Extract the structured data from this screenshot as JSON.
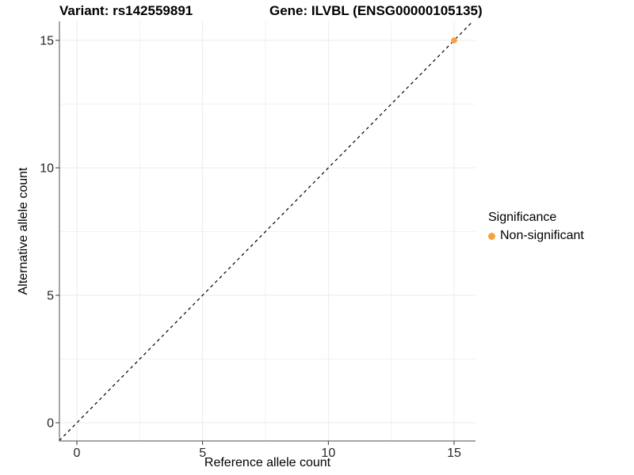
{
  "chart_data": {
    "type": "scatter",
    "title_left": "Variant: rs142559891",
    "title_right": "Gene: ILVBL (ENSG00000105135)",
    "xlabel": "Reference allele count",
    "ylabel": "Alternative allele count",
    "xlim": [
      -0.7,
      15.8
    ],
    "ylim": [
      -0.7,
      15.8
    ],
    "xticks": [
      0,
      5,
      10,
      15
    ],
    "yticks": [
      0,
      5,
      10,
      15
    ],
    "grid": {
      "major": true,
      "minor": true,
      "major_color": "#EBEBEB",
      "minor_color": "#F2F2F2"
    },
    "reference_line": {
      "type": "abline",
      "slope": 1,
      "intercept": 0,
      "style": "dashed",
      "color": "#000000"
    },
    "series": [
      {
        "name": "Non-significant",
        "color": "#F8A23E",
        "points": [
          {
            "x": 15,
            "y": 15
          }
        ]
      }
    ],
    "legend": {
      "title": "Significance",
      "position": "right",
      "entries": [
        {
          "label": "Non-significant",
          "color": "#F8A23E",
          "marker": "circle"
        }
      ]
    },
    "axis_color": "#4D4D4D",
    "tick_color": "#333333",
    "tick_label_color": "#262626"
  }
}
